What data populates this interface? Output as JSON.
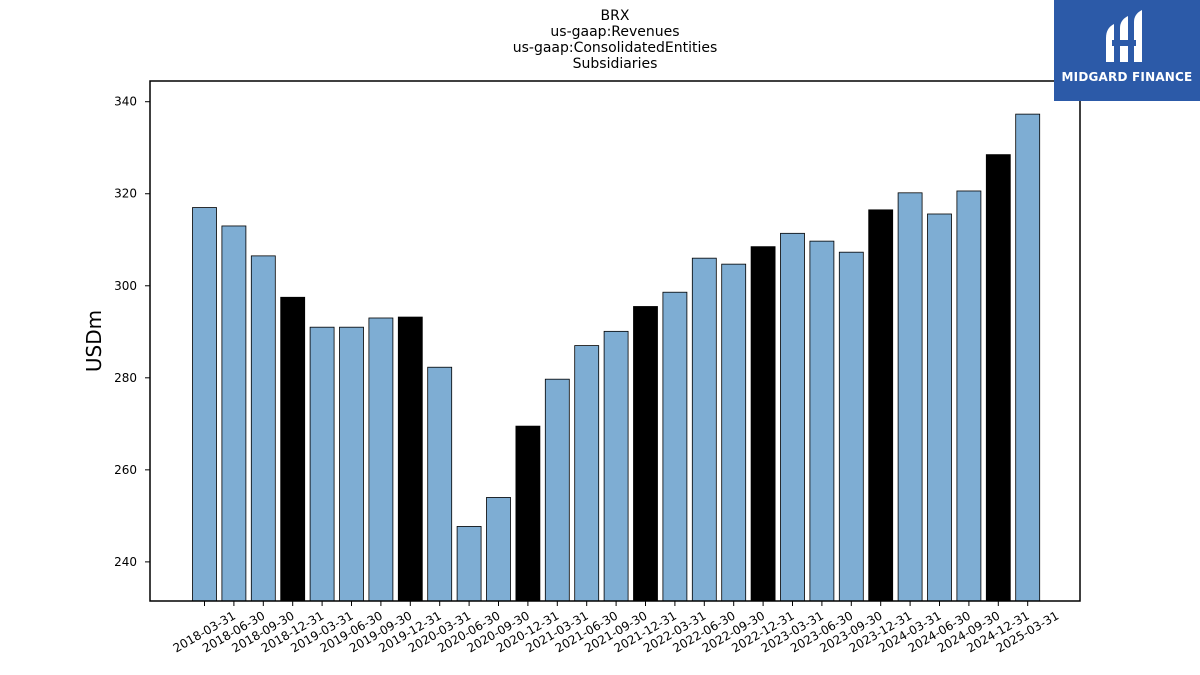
{
  "chart_data": {
    "type": "bar",
    "title": [
      "BRX",
      "us-gaap:Revenues",
      "us-gaap:ConsolidatedEntities",
      "Subsidiaries"
    ],
    "ylabel": "USDm",
    "xlabel": "",
    "ylim": [
      231.5,
      344.5
    ],
    "yticks": [
      240,
      260,
      280,
      300,
      320,
      340
    ],
    "grid": false,
    "colors": {
      "quarter": "#7eadd3",
      "year_end": "#000000",
      "edge": "#000000"
    },
    "categories": [
      "2018-03-31",
      "2018-06-30",
      "2018-09-30",
      "2018-12-31",
      "2019-03-31",
      "2019-06-30",
      "2019-09-30",
      "2019-12-31",
      "2020-03-31",
      "2020-06-30",
      "2020-09-30",
      "2020-12-31",
      "2021-03-31",
      "2021-06-30",
      "2021-09-30",
      "2021-12-31",
      "2022-03-31",
      "2022-06-30",
      "2022-09-30",
      "2022-12-31",
      "2023-03-31",
      "2023-06-30",
      "2023-09-30",
      "2023-12-31",
      "2024-03-31",
      "2024-06-30",
      "2024-09-30",
      "2024-12-31",
      "2025-03-31"
    ],
    "values": [
      317.0,
      313.0,
      306.5,
      297.5,
      291.0,
      291.0,
      293.0,
      293.2,
      282.3,
      247.7,
      254.0,
      269.5,
      279.7,
      287.0,
      290.1,
      295.5,
      298.6,
      306.0,
      304.7,
      308.5,
      311.4,
      309.7,
      307.3,
      316.5,
      320.2,
      315.6,
      320.6,
      328.5,
      337.3
    ],
    "highlight": [
      false,
      false,
      false,
      true,
      false,
      false,
      false,
      true,
      false,
      false,
      false,
      true,
      false,
      false,
      false,
      true,
      false,
      false,
      false,
      true,
      false,
      false,
      false,
      true,
      false,
      false,
      false,
      true,
      false
    ]
  },
  "logo": {
    "text": "MIDGARD FINANCE",
    "background": "#2c5aa8",
    "icon": "midgard-logo-icon"
  }
}
